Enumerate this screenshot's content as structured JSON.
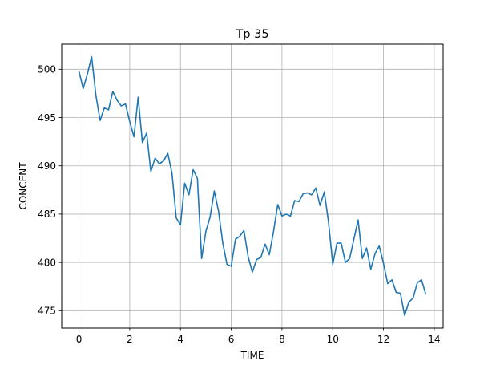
{
  "chart_data": {
    "type": "line",
    "title": "Tp 35",
    "xlabel": "TIME",
    "ylabel": "CONCENT",
    "xlim": [
      -0.68,
      14.35
    ],
    "ylim": [
      473.2,
      502.6
    ],
    "xticks": [
      0,
      2,
      4,
      6,
      8,
      10,
      12,
      14
    ],
    "yticks": [
      475,
      480,
      485,
      490,
      495,
      500
    ],
    "grid": true,
    "line_color": "#1f77b4",
    "series": [
      {
        "x": [
          0.0,
          0.167,
          0.333,
          0.5,
          0.667,
          0.833,
          1.0,
          1.167,
          1.333,
          1.5,
          1.667,
          1.833,
          2.0,
          2.167,
          2.333,
          2.5,
          2.667,
          2.833,
          3.0,
          3.167,
          3.333,
          3.5,
          3.667,
          3.833,
          4.0,
          4.167,
          4.333,
          4.5,
          4.667,
          4.833,
          5.0,
          5.167,
          5.333,
          5.5,
          5.667,
          5.833,
          6.0,
          6.167,
          6.333,
          6.5,
          6.667,
          6.833,
          7.0,
          7.167,
          7.333,
          7.5,
          7.667,
          7.833,
          8.0,
          8.167,
          8.333,
          8.5,
          8.667,
          8.833,
          9.0,
          9.167,
          9.333,
          9.5,
          9.667,
          9.833,
          10.0,
          10.167,
          10.333,
          10.5,
          10.667,
          10.833,
          11.0,
          11.167,
          11.333,
          11.5,
          11.667,
          11.833,
          12.0,
          12.167,
          12.333,
          12.5,
          12.667,
          12.833,
          13.0,
          13.167,
          13.333,
          13.5,
          13.667
        ],
        "values": [
          499.8,
          498.0,
          499.5,
          501.3,
          497.3,
          494.7,
          496.0,
          495.8,
          497.7,
          496.8,
          496.2,
          496.4,
          494.6,
          493.0,
          497.1,
          492.4,
          493.4,
          489.4,
          490.8,
          490.2,
          490.5,
          491.3,
          489.2,
          484.6,
          483.9,
          488.2,
          487.0,
          489.6,
          488.7,
          480.4,
          483.2,
          484.7,
          487.4,
          485.3,
          482.0,
          479.8,
          479.6,
          482.4,
          482.7,
          483.3,
          480.6,
          479.0,
          480.3,
          480.5,
          481.9,
          480.8,
          483.2,
          486.0,
          484.8,
          485.0,
          484.8,
          486.4,
          486.3,
          487.1,
          487.2,
          487.0,
          487.7,
          485.9,
          487.3,
          484.2,
          479.8,
          482.0,
          482.0,
          480.0,
          480.4,
          482.4,
          484.4,
          480.4,
          481.5,
          479.3,
          480.9,
          481.7,
          479.9,
          477.8,
          478.2,
          476.9,
          476.8,
          474.5,
          475.9,
          476.3,
          477.9,
          478.2,
          476.7
        ]
      }
    ]
  }
}
